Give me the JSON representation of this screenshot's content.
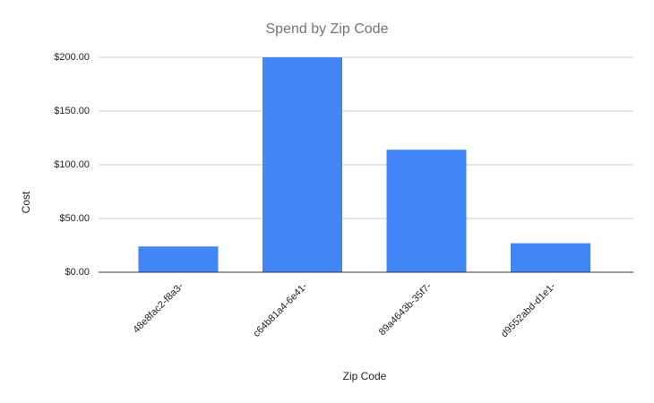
{
  "chart_data": {
    "type": "bar",
    "title": "Spend by Zip Code",
    "x_label": "Zip Code",
    "y_label": "Cost",
    "categories": [
      "48e8fac2-f8a3-",
      "c64b81a4-6e41-",
      "89a4643b-35f7-",
      "d9552abd-d1e1-"
    ],
    "values": [
      24,
      200,
      114,
      27
    ],
    "color": "#4285f4",
    "ylim": [
      0,
      200
    ],
    "yticks": [
      {
        "value": 0,
        "label": "$0.00"
      },
      {
        "value": 50,
        "label": "$50.00"
      },
      {
        "value": 100,
        "label": "$100.00"
      },
      {
        "value": 150,
        "label": "$150.00"
      },
      {
        "value": 200,
        "label": "$200.00"
      }
    ],
    "grid": true
  }
}
